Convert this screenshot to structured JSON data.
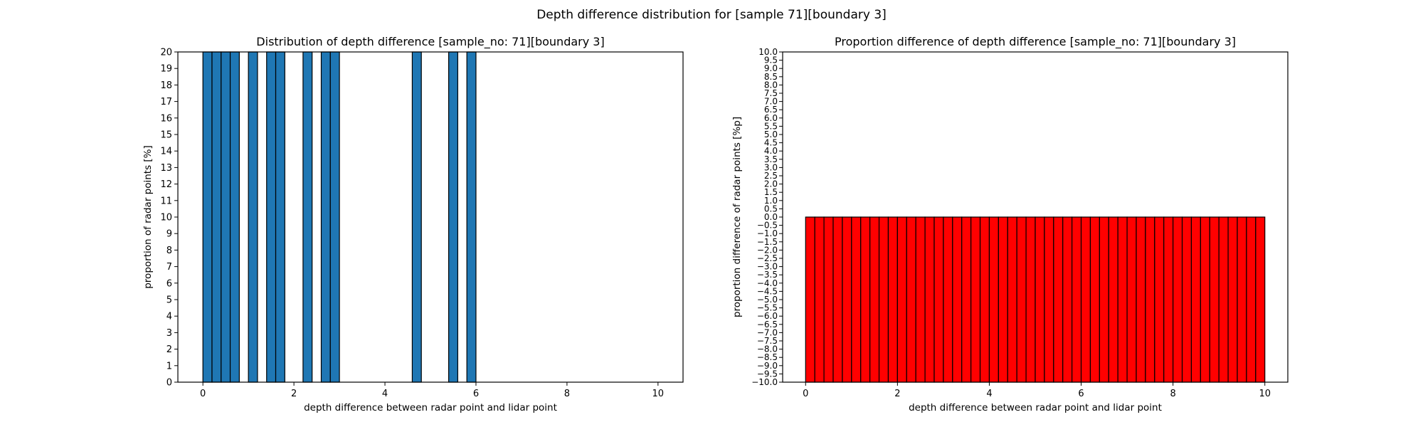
{
  "figure": {
    "suptitle": "Depth difference distribution for [sample 71][boundary 3]"
  },
  "chart_data": [
    {
      "type": "bar",
      "title": "Distribution of depth difference [sample_no: 71][boundary 3]",
      "xlabel": "depth difference between radar point and lidar point",
      "ylabel": "proportion of radar points [%]",
      "xlim": [
        -0.55,
        10.55
      ],
      "ylim": [
        0,
        20
      ],
      "xticks": [
        0,
        2,
        4,
        6,
        8,
        10
      ],
      "yticks": [
        0,
        1,
        2,
        3,
        4,
        5,
        6,
        7,
        8,
        9,
        10,
        11,
        12,
        13,
        14,
        15,
        16,
        17,
        18,
        19,
        20
      ],
      "bin_width": 0.2,
      "grid": false,
      "legend": "none",
      "color": "#1f77b4",
      "edgecolor": "#000000",
      "bins": [
        {
          "x": 0.0,
          "value": 20
        },
        {
          "x": 0.2,
          "value": 20
        },
        {
          "x": 0.4,
          "value": 20
        },
        {
          "x": 0.6,
          "value": 20
        },
        {
          "x": 1.0,
          "value": 20
        },
        {
          "x": 1.4,
          "value": 20
        },
        {
          "x": 1.6,
          "value": 20
        },
        {
          "x": 2.2,
          "value": 20
        },
        {
          "x": 2.6,
          "value": 20
        },
        {
          "x": 2.8,
          "value": 20
        },
        {
          "x": 4.6,
          "value": 20
        },
        {
          "x": 5.4,
          "value": 20
        },
        {
          "x": 5.8,
          "value": 20
        }
      ]
    },
    {
      "type": "bar",
      "title": "Proportion difference of depth difference [sample_no: 71][boundary 3]",
      "xlabel": "depth difference between radar point and lidar point",
      "ylabel": "proportion difference of radar points [%p]",
      "xlim": [
        -0.5,
        10.5
      ],
      "ylim": [
        -10,
        10
      ],
      "xticks": [
        0,
        2,
        4,
        6,
        8,
        10
      ],
      "ytick_step": 0.5,
      "bin_width": 0.2,
      "bin_start": 0.0,
      "bin_count": 50,
      "bar_bottom": -10,
      "bar_top": 0,
      "grid": false,
      "legend": "none",
      "color": "#ff0000",
      "edgecolor": "#000000"
    }
  ]
}
